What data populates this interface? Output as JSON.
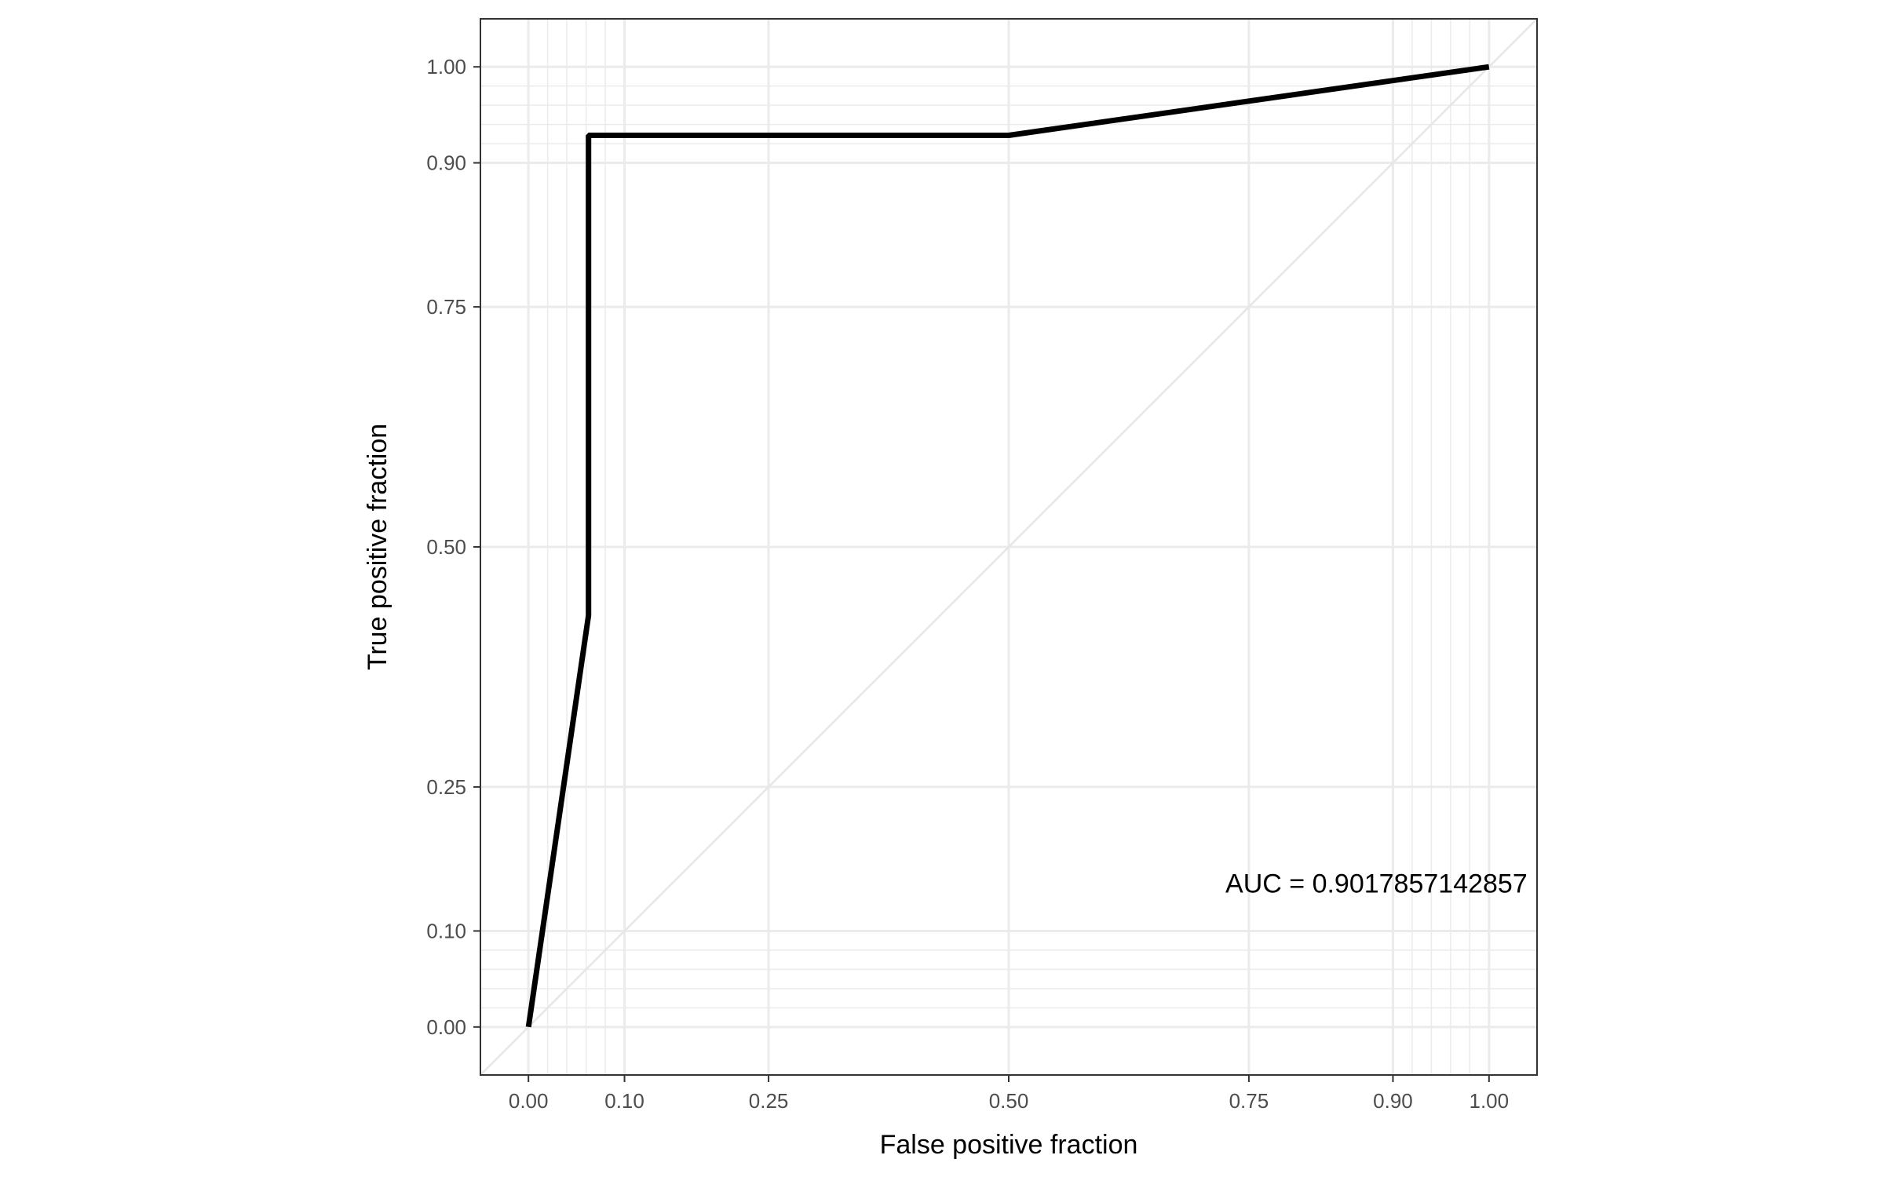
{
  "chart_data": {
    "type": "line",
    "title": "",
    "xlabel": "False positive fraction",
    "ylabel": "True positive fraction",
    "xlim": [
      -0.05,
      1.05
    ],
    "ylim": [
      -0.05,
      1.05
    ],
    "x_ticks": [
      0.0,
      0.1,
      0.25,
      0.5,
      0.75,
      0.9,
      1.0
    ],
    "x_tick_labels": [
      "0.00",
      "0.10",
      "0.25",
      "0.50",
      "0.75",
      "0.90",
      "1.00"
    ],
    "y_ticks": [
      0.0,
      0.1,
      0.25,
      0.5,
      0.75,
      0.9,
      1.0
    ],
    "y_tick_labels": [
      "0.00",
      "0.10",
      "0.25",
      "0.50",
      "0.75",
      "0.90",
      "1.00"
    ],
    "minor_gridlines": [
      0.02,
      0.04,
      0.06,
      0.08,
      0.92,
      0.94,
      0.96,
      0.98
    ],
    "grid": true,
    "reference_line": true,
    "series": [
      {
        "x": [
          0.0,
          0.0625,
          0.0625,
          0.5,
          1.0
        ],
        "y": [
          0.0,
          0.4286,
          0.9286,
          0.9286,
          1.0
        ],
        "color": "#000000"
      }
    ],
    "annotation": "AUC = 0.9017857142857",
    "annotation_x": 1.04,
    "annotation_y": 0.15
  },
  "colors": {
    "grid": "#ebebeb",
    "panel_border": "#333333",
    "reference_line": "#e6e6e6",
    "curve": "#000000"
  }
}
